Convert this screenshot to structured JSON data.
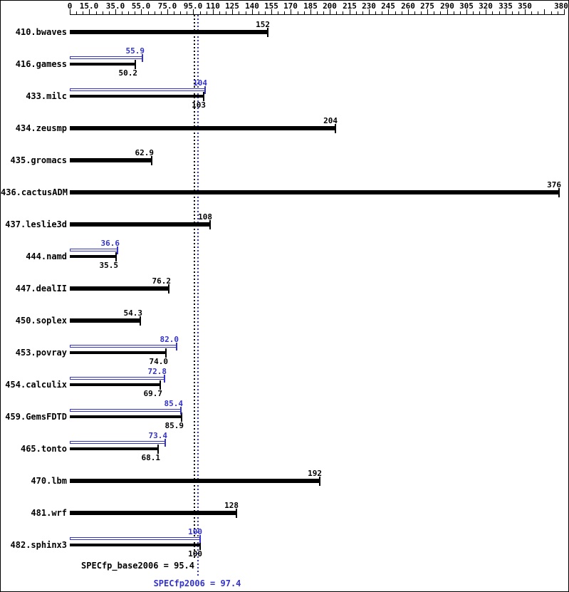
{
  "chart_data": {
    "type": "bar",
    "orientation": "horizontal",
    "title": "",
    "xlabel": "",
    "ylabel": "",
    "xlim": [
      0,
      380
    ],
    "grid": false,
    "legend": "none",
    "axis_minor_step": 5,
    "axis_major_ticks": [
      {
        "v": 0,
        "label": "0"
      },
      {
        "v": 15,
        "label": "15.0"
      },
      {
        "v": 35,
        "label": "35.0"
      },
      {
        "v": 55,
        "label": "55.0"
      },
      {
        "v": 75,
        "label": "75.0"
      },
      {
        "v": 95,
        "label": "95.0"
      },
      {
        "v": 110,
        "label": "110"
      },
      {
        "v": 125,
        "label": "125"
      },
      {
        "v": 140,
        "label": "140"
      },
      {
        "v": 155,
        "label": "155"
      },
      {
        "v": 170,
        "label": "170"
      },
      {
        "v": 185,
        "label": "185"
      },
      {
        "v": 200,
        "label": "200"
      },
      {
        "v": 215,
        "label": "215"
      },
      {
        "v": 230,
        "label": "230"
      },
      {
        "v": 245,
        "label": "245"
      },
      {
        "v": 260,
        "label": "260"
      },
      {
        "v": 275,
        "label": "275"
      },
      {
        "v": 290,
        "label": "290"
      },
      {
        "v": 305,
        "label": "305"
      },
      {
        "v": 320,
        "label": "320"
      },
      {
        "v": 335,
        "label": "335"
      },
      {
        "v": 350,
        "label": "350"
      },
      {
        "v": 365,
        "label": ""
      },
      {
        "v": 380,
        "label": "380",
        "dx": -4
      }
    ],
    "categories": [
      "410.bwaves",
      "416.gamess",
      "433.milc",
      "434.zeusmp",
      "435.gromacs",
      "436.cactusADM",
      "437.leslie3d",
      "444.namd",
      "447.dealII",
      "450.soplex",
      "453.povray",
      "454.calculix",
      "459.GemsFDTD",
      "465.tonto",
      "470.lbm",
      "481.wrf",
      "482.sphinx3"
    ],
    "series": [
      {
        "name": "peak",
        "values": [
          null,
          55.9,
          104,
          null,
          null,
          null,
          null,
          36.6,
          null,
          null,
          82.0,
          72.8,
          85.4,
          73.4,
          null,
          null,
          100
        ]
      },
      {
        "name": "base",
        "values": [
          152,
          50.2,
          103,
          204,
          62.9,
          376,
          108,
          35.5,
          76.2,
          54.3,
          74.0,
          69.7,
          85.9,
          68.1,
          192,
          128,
          100
        ]
      }
    ],
    "rows": [
      {
        "name": "410.bwaves",
        "base": 152,
        "base_label": "152",
        "peak": null,
        "peak_label": ""
      },
      {
        "name": "416.gamess",
        "base": 50.2,
        "base_label": "50.2",
        "peak": 55.9,
        "peak_label": "55.9"
      },
      {
        "name": "433.milc",
        "base": 103,
        "base_label": "103",
        "peak": 104,
        "peak_label": "104"
      },
      {
        "name": "434.zeusmp",
        "base": 204,
        "base_label": "204",
        "peak": null,
        "peak_label": ""
      },
      {
        "name": "435.gromacs",
        "base": 62.9,
        "base_label": "62.9",
        "peak": null,
        "peak_label": ""
      },
      {
        "name": "436.cactusADM",
        "base": 376,
        "base_label": "376",
        "peak": null,
        "peak_label": ""
      },
      {
        "name": "437.leslie3d",
        "base": 108,
        "base_label": "108",
        "peak": null,
        "peak_label": ""
      },
      {
        "name": "444.namd",
        "base": 35.5,
        "base_label": "35.5",
        "peak": 36.6,
        "peak_label": "36.6"
      },
      {
        "name": "447.dealII",
        "base": 76.2,
        "base_label": "76.2",
        "peak": null,
        "peak_label": ""
      },
      {
        "name": "450.soplex",
        "base": 54.3,
        "base_label": "54.3",
        "peak": null,
        "peak_label": ""
      },
      {
        "name": "453.povray",
        "base": 74.0,
        "base_label": "74.0",
        "peak": 82.0,
        "peak_label": "82.0"
      },
      {
        "name": "454.calculix",
        "base": 69.7,
        "base_label": "69.7",
        "peak": 72.8,
        "peak_label": "72.8"
      },
      {
        "name": "459.GemsFDTD",
        "base": 85.9,
        "base_label": "85.9",
        "peak": 85.4,
        "peak_label": "85.4"
      },
      {
        "name": "465.tonto",
        "base": 68.1,
        "base_label": "68.1",
        "peak": 73.4,
        "peak_label": "73.4"
      },
      {
        "name": "470.lbm",
        "base": 192,
        "base_label": "192",
        "peak": null,
        "peak_label": ""
      },
      {
        "name": "481.wrf",
        "base": 128,
        "base_label": "128",
        "peak": null,
        "peak_label": ""
      },
      {
        "name": "482.sphinx3",
        "base": 100,
        "base_label": "100",
        "peak": 100,
        "peak_label": "100"
      }
    ],
    "means": {
      "base": {
        "value": 95.4,
        "label": "SPECfp_base2006 = 95.4"
      },
      "peak": {
        "value": 97.4,
        "label": "SPECfp2006 = 97.4"
      }
    },
    "colors": {
      "base": "#000000",
      "peak": "#3333cc",
      "background": "#ffffff"
    }
  }
}
